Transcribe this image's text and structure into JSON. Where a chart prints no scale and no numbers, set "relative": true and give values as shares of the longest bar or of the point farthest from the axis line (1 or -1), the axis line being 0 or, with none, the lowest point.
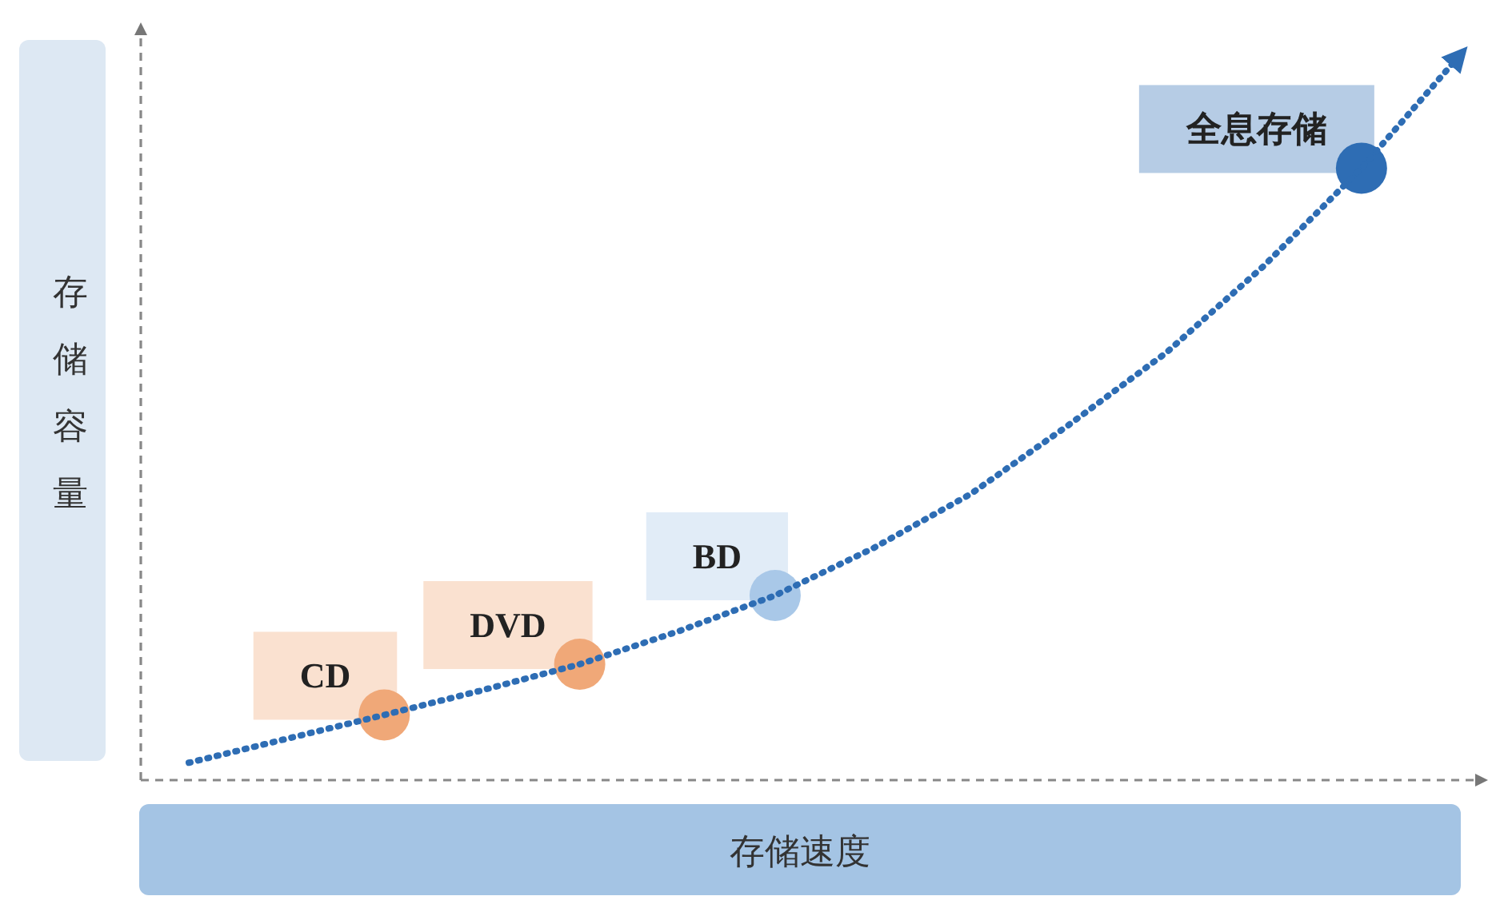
{
  "chart_data": {
    "type": "line",
    "relative": true,
    "xlabel": "存储速度",
    "ylabel": "存储容量",
    "categories": [
      null,
      null,
      null,
      null,
      null,
      null,
      null,
      null,
      null,
      null,
      null,
      null,
      null,
      null
    ],
    "series": [
      {
        "color": "#2e6db4",
        "line_style": "dotted",
        "colors": [
          null,
          null,
          "#f0a878",
          null,
          "#f0a878",
          null,
          "#a9c8e8",
          null,
          null,
          null,
          null,
          null,
          "#2e6db4",
          null
        ],
        "values": [
          0.024,
          0.057,
          0.09,
          0.124,
          0.16,
          0.205,
          0.255,
          0.32,
          0.395,
          0.49,
          0.59,
          0.71,
          0.845,
          1
        ]
      }
    ],
    "annotations": [
      "CD",
      "DVD",
      "BD",
      "全息存储"
    ]
  }
}
